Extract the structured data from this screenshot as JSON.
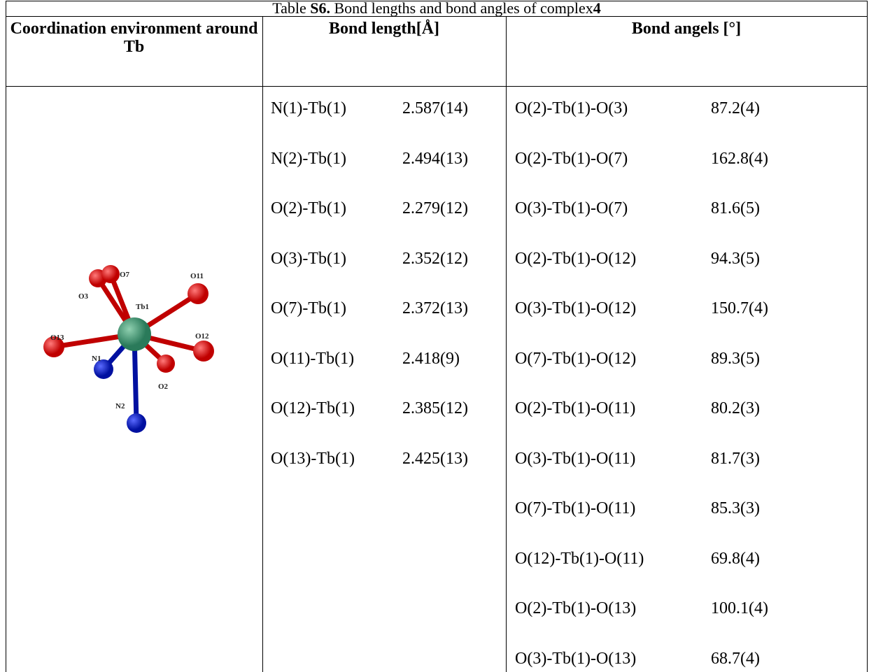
{
  "caption": {
    "label": "Table",
    "number": "S6.",
    "text": "Bond lengths and bond angles of complex",
    "complex": "4"
  },
  "headers": [
    "Coordination environment around Tb",
    "Bond length[Å]",
    "Bond angels [°]"
  ],
  "figure": {
    "labels": [
      "O11",
      "O7",
      "O3",
      "Tb1",
      "O13",
      "O12",
      "N1",
      "O2",
      "N2"
    ]
  },
  "bond_lengths": [
    [
      "N(1)-Tb(1)",
      "2.587(14)"
    ],
    [
      "N(2)-Tb(1)",
      "2.494(13)"
    ],
    [
      "O(2)-Tb(1)",
      "2.279(12)"
    ],
    [
      "O(3)-Tb(1)",
      "2.352(12)"
    ],
    [
      "O(7)-Tb(1)",
      "2.372(13)"
    ],
    [
      "O(11)-Tb(1)",
      "2.418(9)"
    ],
    [
      "O(12)-Tb(1)",
      "2.385(12)"
    ],
    [
      "O(13)-Tb(1)",
      "2.425(13)"
    ]
  ],
  "bond_angles": [
    [
      "O(2)-Tb(1)-O(3)",
      "87.2(4)"
    ],
    [
      "O(2)-Tb(1)-O(7)",
      "162.8(4)"
    ],
    [
      "O(3)-Tb(1)-O(7)",
      "81.6(5)"
    ],
    [
      "O(2)-Tb(1)-O(12)",
      "94.3(5)"
    ],
    [
      "O(3)-Tb(1)-O(12)",
      "150.7(4)"
    ],
    [
      "O(7)-Tb(1)-O(12)",
      "89.3(5)"
    ],
    [
      "O(2)-Tb(1)-O(11)",
      "80.2(3)"
    ],
    [
      "O(3)-Tb(1)-O(11)",
      "81.7(3)"
    ],
    [
      "O(7)-Tb(1)-O(11)",
      "85.3(3)"
    ],
    [
      "O(12)-Tb(1)-O(11)",
      "69.8(4)"
    ],
    [
      "O(2)-Tb(1)-O(13)",
      "100.1(4)"
    ],
    [
      "O(3)-Tb(1)-O(13)",
      "68.7(4)"
    ]
  ]
}
